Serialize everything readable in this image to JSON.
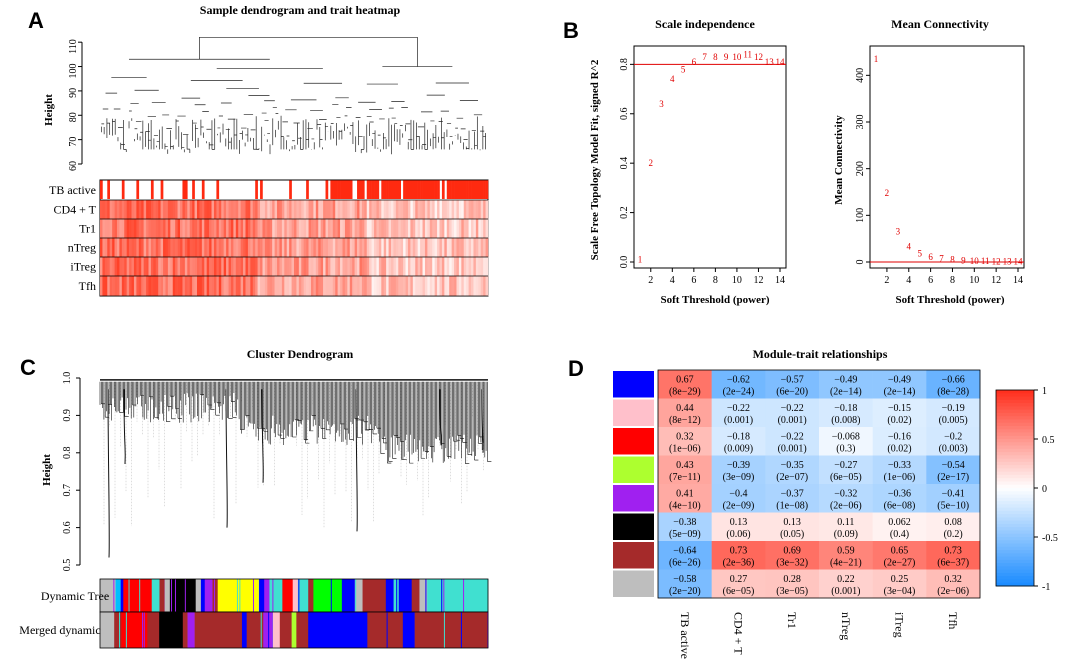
{
  "panels": {
    "a": {
      "letter": "A",
      "title": "Sample dendrogram and trait heatmap",
      "ylabel": "Height",
      "yticks": [
        "60",
        "70",
        "80",
        "90",
        "100",
        "110"
      ],
      "tracks": [
        "TB active",
        "CD4 + T",
        "Tr1",
        "nTreg",
        "iTreg",
        "Tfh"
      ]
    },
    "b": {
      "letter": "B",
      "left": {
        "title": "Scale independence",
        "xlabel": "Soft Threshold (power)",
        "ylabel": "Scale Free Topology Model Fit, signed R^2",
        "xticks": [
          "2",
          "4",
          "6",
          "8",
          "10",
          "12",
          "14"
        ],
        "yticks": [
          "0.0",
          "0.2",
          "0.4",
          "0.6",
          "0.8"
        ]
      },
      "right": {
        "title": "Mean Connectivity",
        "xlabel": "Soft Threshold (power)",
        "ylabel": "Mean Connectivity",
        "xticks": [
          "2",
          "4",
          "6",
          "8",
          "10",
          "12",
          "14"
        ],
        "yticks": [
          "0",
          "100",
          "200",
          "300",
          "400"
        ]
      }
    },
    "c": {
      "letter": "C",
      "title": "Cluster Dendrogram",
      "ylabel": "Height",
      "yticks": [
        "0.5",
        "0.6",
        "0.7",
        "0.8",
        "0.9",
        "1.0"
      ],
      "tracks": [
        "Dynamic Tree",
        "Merged dynamic"
      ]
    },
    "d": {
      "letter": "D",
      "title": "Module-trait relationships",
      "columns": [
        "TB active",
        "CD4 + T",
        "Tr1",
        "nTreg",
        "iTreg",
        "Tfh"
      ],
      "legend_ticks": [
        "1",
        "0.5",
        "0",
        "-0.5",
        "-1"
      ]
    }
  },
  "chart_data": [
    {
      "type": "scatter",
      "title": "Scale independence",
      "xlabel": "Soft Threshold (power)",
      "ylabel": "Scale Free Topology Model Fit, signed R^2",
      "xlim": [
        1,
        14
      ],
      "ylim": [
        0,
        0.85
      ],
      "cutoff_line": 0.8,
      "x": [
        1,
        2,
        3,
        4,
        5,
        6,
        7,
        8,
        9,
        10,
        11,
        12,
        13,
        14
      ],
      "labels": [
        "1",
        "2",
        "3",
        "4",
        "5",
        "6",
        "7",
        "8",
        "9",
        "10",
        "11",
        "12",
        "13",
        "14"
      ],
      "y": [
        0.01,
        0.4,
        0.64,
        0.74,
        0.78,
        0.81,
        0.83,
        0.83,
        0.83,
        0.83,
        0.84,
        0.83,
        0.81,
        0.81
      ]
    },
    {
      "type": "scatter",
      "title": "Mean Connectivity",
      "xlabel": "Soft Threshold (power)",
      "ylabel": "Mean Connectivity",
      "xlim": [
        1,
        14
      ],
      "ylim": [
        0,
        450
      ],
      "cutoff_line": 0,
      "x": [
        1,
        2,
        3,
        4,
        5,
        6,
        7,
        8,
        9,
        10,
        11,
        12,
        13,
        14
      ],
      "labels": [
        "1",
        "2",
        "3",
        "4",
        "5",
        "6",
        "7",
        "8",
        "9",
        "10",
        "11",
        "12",
        "13",
        "14"
      ],
      "y": [
        435,
        148,
        65,
        33,
        18,
        11,
        7,
        5,
        3,
        2,
        2,
        1,
        1,
        1
      ]
    },
    {
      "type": "heatmap",
      "title": "Module-trait relationships",
      "columns": [
        "TB active",
        "CD4 + T",
        "Tr1",
        "nTreg",
        "iTreg",
        "Tfh"
      ],
      "rows": [
        {
          "module_color": "#0000ff",
          "values": [
            0.67,
            -0.62,
            -0.57,
            -0.49,
            -0.49,
            -0.66
          ],
          "labels": [
            "0.67",
            "−0.62",
            "−0.57",
            "−0.49",
            "−0.49",
            "−0.66"
          ],
          "pvalues": [
            "(8e−29)",
            "(2e−24)",
            "(6e−20)",
            "(2e−14)",
            "(2e−14)",
            "(8e−28)"
          ]
        },
        {
          "module_color": "#ffc0cb",
          "values": [
            0.44,
            -0.22,
            -0.22,
            -0.18,
            -0.15,
            -0.19
          ],
          "labels": [
            "0.44",
            "−0.22",
            "−0.22",
            "−0.18",
            "−0.15",
            "−0.19"
          ],
          "pvalues": [
            "(8e−12)",
            "(0.001)",
            "(0.001)",
            "(0.008)",
            "(0.02)",
            "(0.005)"
          ]
        },
        {
          "module_color": "#ff0000",
          "values": [
            0.32,
            -0.18,
            -0.22,
            -0.068,
            -0.16,
            -0.2
          ],
          "labels": [
            "0.32",
            "−0.18",
            "−0.22",
            "−0.068",
            "−0.16",
            "−0.2"
          ],
          "pvalues": [
            "(1e−06)",
            "(0.009)",
            "(0.001)",
            "(0.3)",
            "(0.02)",
            "(0.003)"
          ]
        },
        {
          "module_color": "#adff2f",
          "values": [
            0.43,
            -0.39,
            -0.35,
            -0.27,
            -0.33,
            -0.54
          ],
          "labels": [
            "0.43",
            "−0.39",
            "−0.35",
            "−0.27",
            "−0.33",
            "−0.54"
          ],
          "pvalues": [
            "(7e−11)",
            "(3e−09)",
            "(2e−07)",
            "(6e−05)",
            "(1e−06)",
            "(2e−17)"
          ]
        },
        {
          "module_color": "#a020f0",
          "values": [
            0.41,
            -0.4,
            -0.37,
            -0.32,
            -0.36,
            -0.41
          ],
          "labels": [
            "0.41",
            "−0.4",
            "−0.37",
            "−0.32",
            "−0.36",
            "−0.41"
          ],
          "pvalues": [
            "(4e−10)",
            "(2e−09)",
            "(1e−08)",
            "(2e−06)",
            "(6e−08)",
            "(5e−10)"
          ]
        },
        {
          "module_color": "#000000",
          "values": [
            -0.38,
            0.13,
            0.13,
            0.11,
            0.062,
            0.08
          ],
          "labels": [
            "−0.38",
            "0.13",
            "0.13",
            "0.11",
            "0.062",
            "0.08"
          ],
          "pvalues": [
            "(5e−09)",
            "(0.06)",
            "(0.05)",
            "(0.09)",
            "(0.4)",
            "(0.2)"
          ]
        },
        {
          "module_color": "#a52a2a",
          "values": [
            -0.64,
            0.73,
            0.69,
            0.59,
            0.65,
            0.73
          ],
          "labels": [
            "−0.64",
            "0.73",
            "0.69",
            "0.59",
            "0.65",
            "0.73"
          ],
          "pvalues": [
            "(6e−26)",
            "(2e−36)",
            "(3e−32)",
            "(4e−21)",
            "(2e−27)",
            "(6e−37)"
          ]
        },
        {
          "module_color": "#bebebe",
          "values": [
            -0.58,
            0.27,
            0.28,
            0.22,
            0.25,
            0.32
          ],
          "labels": [
            "−0.58",
            "0.27",
            "0.28",
            "0.22",
            "0.25",
            "0.32"
          ],
          "pvalues": [
            "(2e−20)",
            "(6e−05)",
            "(3e−05)",
            "(0.001)",
            "(3e−04)",
            "(2e−06)"
          ]
        }
      ],
      "scale": [
        -1,
        1
      ]
    }
  ]
}
